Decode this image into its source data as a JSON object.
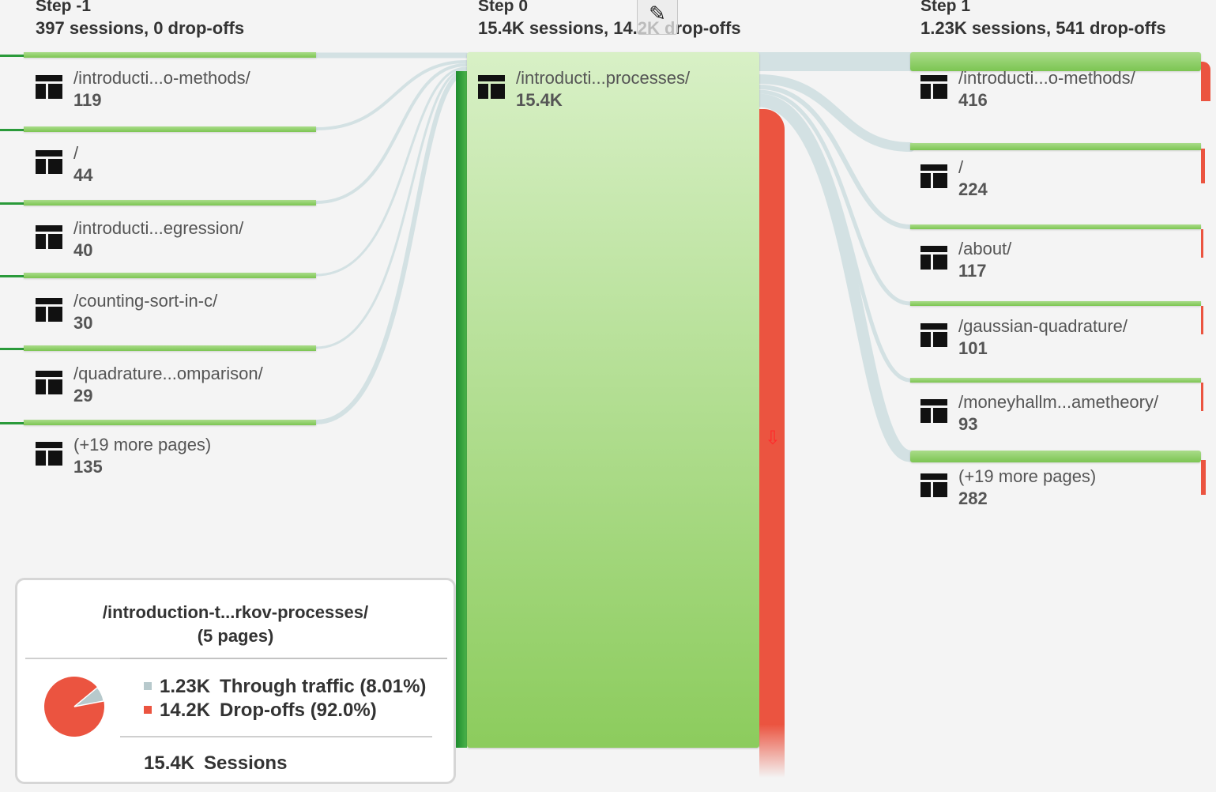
{
  "steps": [
    {
      "title": "Step -1",
      "summary": "397 sessions, 0 drop-offs"
    },
    {
      "title": "Step 0",
      "summary": "15.4K sessions, 14.2K drop-offs"
    },
    {
      "title": "Step 1",
      "summary": "1.23K sessions, 541 drop-offs"
    }
  ],
  "left_nodes": [
    {
      "name": "/introducti...o-methods/",
      "count": "119"
    },
    {
      "name": "/",
      "count": "44"
    },
    {
      "name": "/introducti...egression/",
      "count": "40"
    },
    {
      "name": "/counting-sort-in-c/",
      "count": "30"
    },
    {
      "name": "/quadrature...omparison/",
      "count": "29"
    },
    {
      "name": "(+19 more pages)",
      "count": "135"
    }
  ],
  "center_node": {
    "name": "/introducti...processes/",
    "count": "15.4K"
  },
  "right_nodes": [
    {
      "name": "/introducti...o-methods/",
      "count": "416"
    },
    {
      "name": "/",
      "count": "224"
    },
    {
      "name": "/about/",
      "count": "117"
    },
    {
      "name": "/gaussian-quadrature/",
      "count": "101"
    },
    {
      "name": "/moneyhallm...ametheory/",
      "count": "93"
    },
    {
      "name": "(+19 more pages)",
      "count": "282"
    }
  ],
  "tooltip": {
    "title_line1": "/introduction-t...rkov-processes/",
    "title_line2": "(5 pages)",
    "through_value": "1.23K",
    "through_label": "Through traffic (8.01%)",
    "dropoff_value": "14.2K",
    "dropoff_label": "Drop-offs (92.0%)",
    "sessions_value": "15.4K",
    "sessions_label": "Sessions",
    "through_fraction": 0.0801
  },
  "icons": {
    "page": "page-layout-icon",
    "edit": "pencil-icon",
    "dropoff": "down-arrow-icon"
  },
  "colors": {
    "node_green": "#8ccc5d",
    "dropoff_red": "#eb5440",
    "flow_link": "#d3e1e3",
    "through_swatch": "#b7c9cc",
    "dropoff_swatch": "#eb5440"
  }
}
